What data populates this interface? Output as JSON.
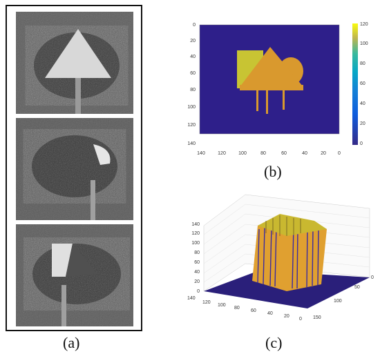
{
  "captions": {
    "a": "(a)",
    "b": "(b)",
    "c": "(c)"
  },
  "heatmap": {
    "x_ticks": [
      "140",
      "120",
      "100",
      "80",
      "60",
      "40",
      "20",
      "0"
    ],
    "y_ticks": [
      "0",
      "20",
      "40",
      "60",
      "80",
      "100",
      "120",
      "140"
    ],
    "colorbar_ticks": [
      "0",
      "20",
      "40",
      "60",
      "80",
      "100",
      "120"
    ],
    "colors": {
      "background": "#2e1f8a",
      "shape": "#d9992e",
      "shape_left": "#c8c433"
    }
  },
  "surface": {
    "z_ticks": [
      "0",
      "20",
      "40",
      "60",
      "80",
      "100",
      "120",
      "140"
    ],
    "x_ticks": [
      "140",
      "120",
      "100",
      "80",
      "60",
      "40",
      "20",
      "0"
    ],
    "y_ticks": [
      "0",
      "50",
      "100",
      "150"
    ],
    "colors": {
      "floor": "#2a1f7a",
      "wall": "#e0a030",
      "wall_dark": "#3a2aa0",
      "top": "#c9b830"
    }
  }
}
